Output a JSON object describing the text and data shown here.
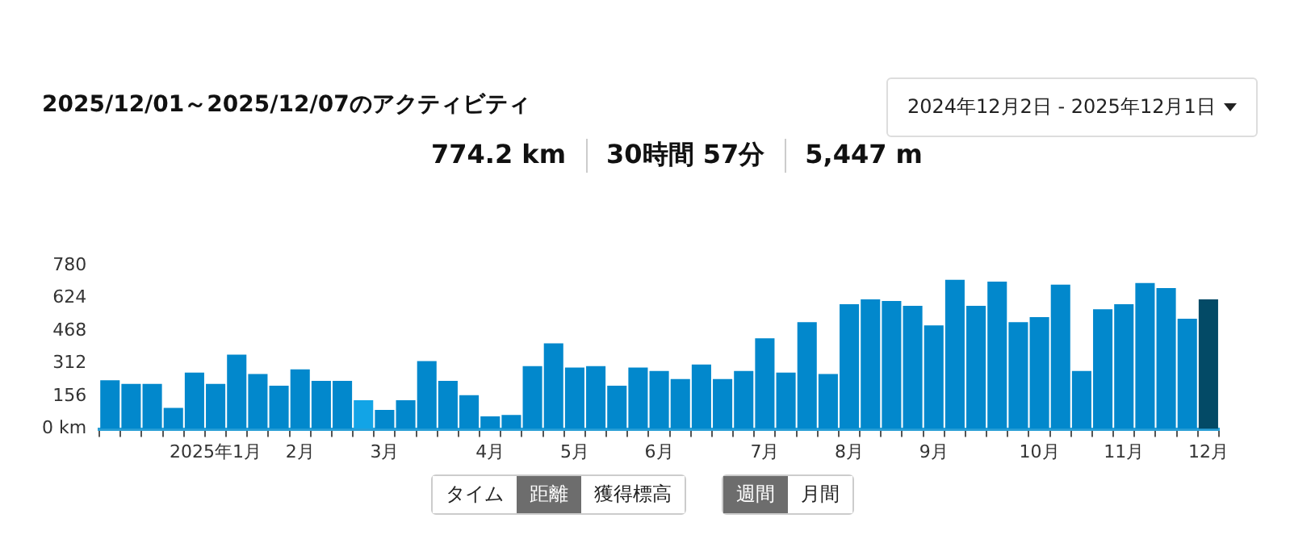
{
  "chart_data": {
    "type": "bar",
    "title": "2025/12/01～2025/12/07のアクティビティ",
    "annotations": [
      "774.2 km",
      "30時間 57分",
      "5,447 m",
      "2024年12月2日 - 2025年12月1日",
      "タイム",
      "距離",
      "獲得標高",
      "週間",
      "月間"
    ],
    "categories": [
      null,
      null,
      null,
      null,
      null,
      "2025年1月",
      null,
      null,
      null,
      "2月",
      null,
      null,
      null,
      "3月",
      null,
      null,
      null,
      null,
      "4月",
      null,
      null,
      null,
      "5月",
      null,
      null,
      null,
      "6月",
      null,
      null,
      null,
      null,
      "7月",
      null,
      null,
      null,
      "8月",
      null,
      null,
      null,
      "9月",
      null,
      null,
      null,
      null,
      "10月",
      null,
      null,
      null,
      "11月",
      null,
      null,
      null,
      "12月"
    ],
    "values": [
      233,
      215,
      215,
      101,
      269,
      215,
      355,
      262,
      207,
      285,
      230,
      230,
      137,
      91,
      137,
      324,
      230,
      161,
      60,
      67,
      300,
      409,
      293,
      300,
      207,
      293,
      277,
      238,
      308,
      238,
      277,
      433,
      269,
      510,
      262,
      596,
      619,
      611,
      588,
      495,
      712,
      588,
      704,
      510,
      534,
      689,
      277,
      572,
      596,
      697,
      673,
      526,
      619
    ],
    "colors": [
      "#0288cc",
      "#0288cc",
      "#0288cc",
      "#0288cc",
      "#0288cc",
      "#0288cc",
      "#0288cc",
      "#0288cc",
      "#0288cc",
      "#0288cc",
      "#0288cc",
      "#0288cc",
      "#12a4e6",
      "#0288cc",
      "#0288cc",
      "#0288cc",
      "#0288cc",
      "#0288cc",
      "#0288cc",
      "#0288cc",
      "#0288cc",
      "#0288cc",
      "#0288cc",
      "#0288cc",
      "#0288cc",
      "#0288cc",
      "#0288cc",
      "#0288cc",
      "#0288cc",
      "#0288cc",
      "#0288cc",
      "#0288cc",
      "#0288cc",
      "#0288cc",
      "#0288cc",
      "#0288cc",
      "#0288cc",
      "#0288cc",
      "#0288cc",
      "#0288cc",
      "#0288cc",
      "#0288cc",
      "#0288cc",
      "#0288cc",
      "#0288cc",
      "#0288cc",
      "#0288cc",
      "#0288cc",
      "#0288cc",
      "#0288cc",
      "#0288cc",
      "#0288cc",
      "#034a66"
    ],
    "ylim": [
      0,
      780
    ],
    "yticks": [
      {
        "value": 0,
        "label": "0 km"
      },
      156,
      312,
      468,
      624,
      780
    ],
    "grid": false,
    "legend": false
  }
}
